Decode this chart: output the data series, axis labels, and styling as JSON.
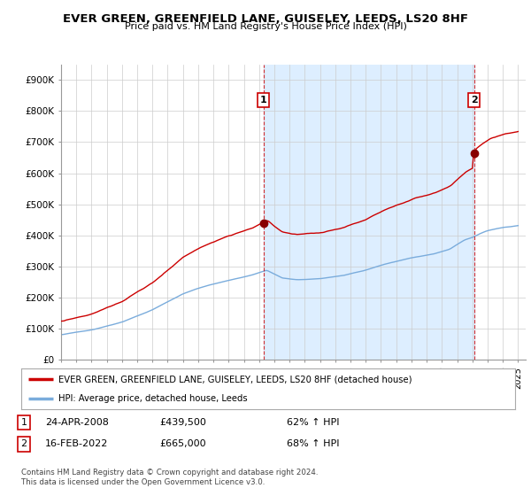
{
  "title": "EVER GREEN, GREENFIELD LANE, GUISELEY, LEEDS, LS20 8HF",
  "subtitle": "Price paid vs. HM Land Registry's House Price Index (HPI)",
  "ylabel_ticks": [
    "£0",
    "£100K",
    "£200K",
    "£300K",
    "£400K",
    "£500K",
    "£600K",
    "£700K",
    "£800K",
    "£900K"
  ],
  "ytick_vals": [
    0,
    100000,
    200000,
    300000,
    400000,
    500000,
    600000,
    700000,
    800000,
    900000
  ],
  "ylim": [
    0,
    950000
  ],
  "xlim_start": 1995.0,
  "xlim_end": 2025.5,
  "hpi_color": "#7aacdc",
  "price_color": "#cc0000",
  "shade_color": "#ddeeff",
  "sale1_x": 2008.29,
  "sale1_y": 439500,
  "sale2_x": 2022.12,
  "sale2_y": 665000,
  "legend_line1": "EVER GREEN, GREENFIELD LANE, GUISELEY, LEEDS, LS20 8HF (detached house)",
  "legend_line2": "HPI: Average price, detached house, Leeds",
  "table_row1": [
    "1",
    "24-APR-2008",
    "£439,500",
    "62% ↑ HPI"
  ],
  "table_row2": [
    "2",
    "16-FEB-2022",
    "£665,000",
    "68% ↑ HPI"
  ],
  "footnote": "Contains HM Land Registry data © Crown copyright and database right 2024.\nThis data is licensed under the Open Government Licence v3.0.",
  "background_color": "#ffffff",
  "grid_color": "#cccccc",
  "xtick_years": [
    1995,
    1996,
    1997,
    1998,
    1999,
    2000,
    2001,
    2002,
    2003,
    2004,
    2005,
    2006,
    2007,
    2008,
    2009,
    2010,
    2011,
    2012,
    2013,
    2014,
    2015,
    2016,
    2017,
    2018,
    2019,
    2020,
    2021,
    2022,
    2023,
    2024,
    2025
  ]
}
